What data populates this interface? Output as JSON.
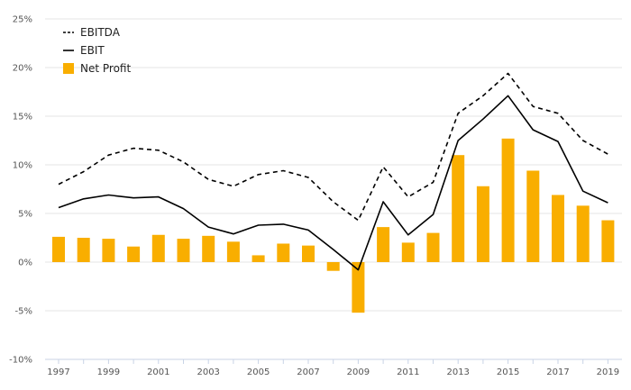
{
  "chart_data": {
    "type": "bar",
    "x": [
      "1997",
      "1998",
      "1999",
      "2000",
      "2001",
      "2002",
      "2003",
      "2004",
      "2005",
      "2006",
      "2007",
      "2008",
      "2009",
      "2010",
      "2011",
      "2012",
      "2013",
      "2014",
      "2015",
      "2016",
      "2017",
      "2018",
      "2019"
    ],
    "x_tick_labels": [
      "1997",
      "1999",
      "2001",
      "2003",
      "2005",
      "2007",
      "2009",
      "2011",
      "2013",
      "2015",
      "2017",
      "2019"
    ],
    "y_tick_labels": [
      "25%",
      "20%",
      "15%",
      "10%",
      "5%",
      "0%",
      "-5%",
      "-10%"
    ],
    "ylim": [
      -10,
      25
    ],
    "y_unit": "%",
    "grid": true,
    "legend_position": "top-left",
    "series": [
      {
        "name": "EBITDA",
        "kind": "line",
        "style": "dashed",
        "color": "#000000",
        "values": [
          8.0,
          9.3,
          11.0,
          11.7,
          11.5,
          10.3,
          8.5,
          7.8,
          9.0,
          9.4,
          8.7,
          6.2,
          4.3,
          9.8,
          6.7,
          8.2,
          15.3,
          17.1,
          19.4,
          16.0,
          15.3,
          12.5,
          11.1
        ]
      },
      {
        "name": "EBIT",
        "kind": "line",
        "style": "solid",
        "color": "#000000",
        "values": [
          5.6,
          6.5,
          6.9,
          6.6,
          6.7,
          5.5,
          3.6,
          2.9,
          3.8,
          3.9,
          3.3,
          1.3,
          -0.8,
          6.2,
          2.8,
          4.9,
          12.5,
          14.7,
          17.1,
          13.6,
          12.4,
          7.3,
          6.1
        ]
      },
      {
        "name": "Net Profit",
        "kind": "bar",
        "color": "#F9AE00",
        "values": [
          2.6,
          2.5,
          2.4,
          1.6,
          2.8,
          2.4,
          2.7,
          2.1,
          0.7,
          1.9,
          1.7,
          -0.9,
          -5.2,
          3.6,
          2.0,
          3.0,
          11.0,
          7.8,
          12.7,
          9.4,
          6.9,
          5.8,
          4.3
        ]
      }
    ]
  }
}
